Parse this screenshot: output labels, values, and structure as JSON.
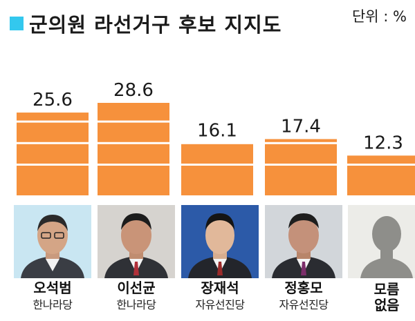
{
  "unit_label": "단위 : %",
  "colors": {
    "bar": "#f6913c",
    "accent": "#33c8ee"
  },
  "candidates": [
    {
      "name": "오석범",
      "party": "한나라당"
    },
    {
      "name": "이선균",
      "party": "한나라당"
    },
    {
      "name": "장재석",
      "party": "자유선진당"
    },
    {
      "name": "정홍모",
      "party": "자유선진당"
    },
    {
      "name": "모름",
      "party": "없음"
    }
  ],
  "chart_data": {
    "type": "bar",
    "title": "군의원 라선거구 후보 지지도",
    "categories": [
      "오석범",
      "이선균",
      "장재석",
      "정홍모",
      "모름 없음"
    ],
    "values": [
      25.6,
      28.6,
      16.1,
      17.4,
      12.3
    ],
    "value_labels": [
      "25.6",
      "28.6",
      "16.1",
      "17.4",
      "12.3"
    ],
    "ylim": [
      0,
      30
    ]
  }
}
